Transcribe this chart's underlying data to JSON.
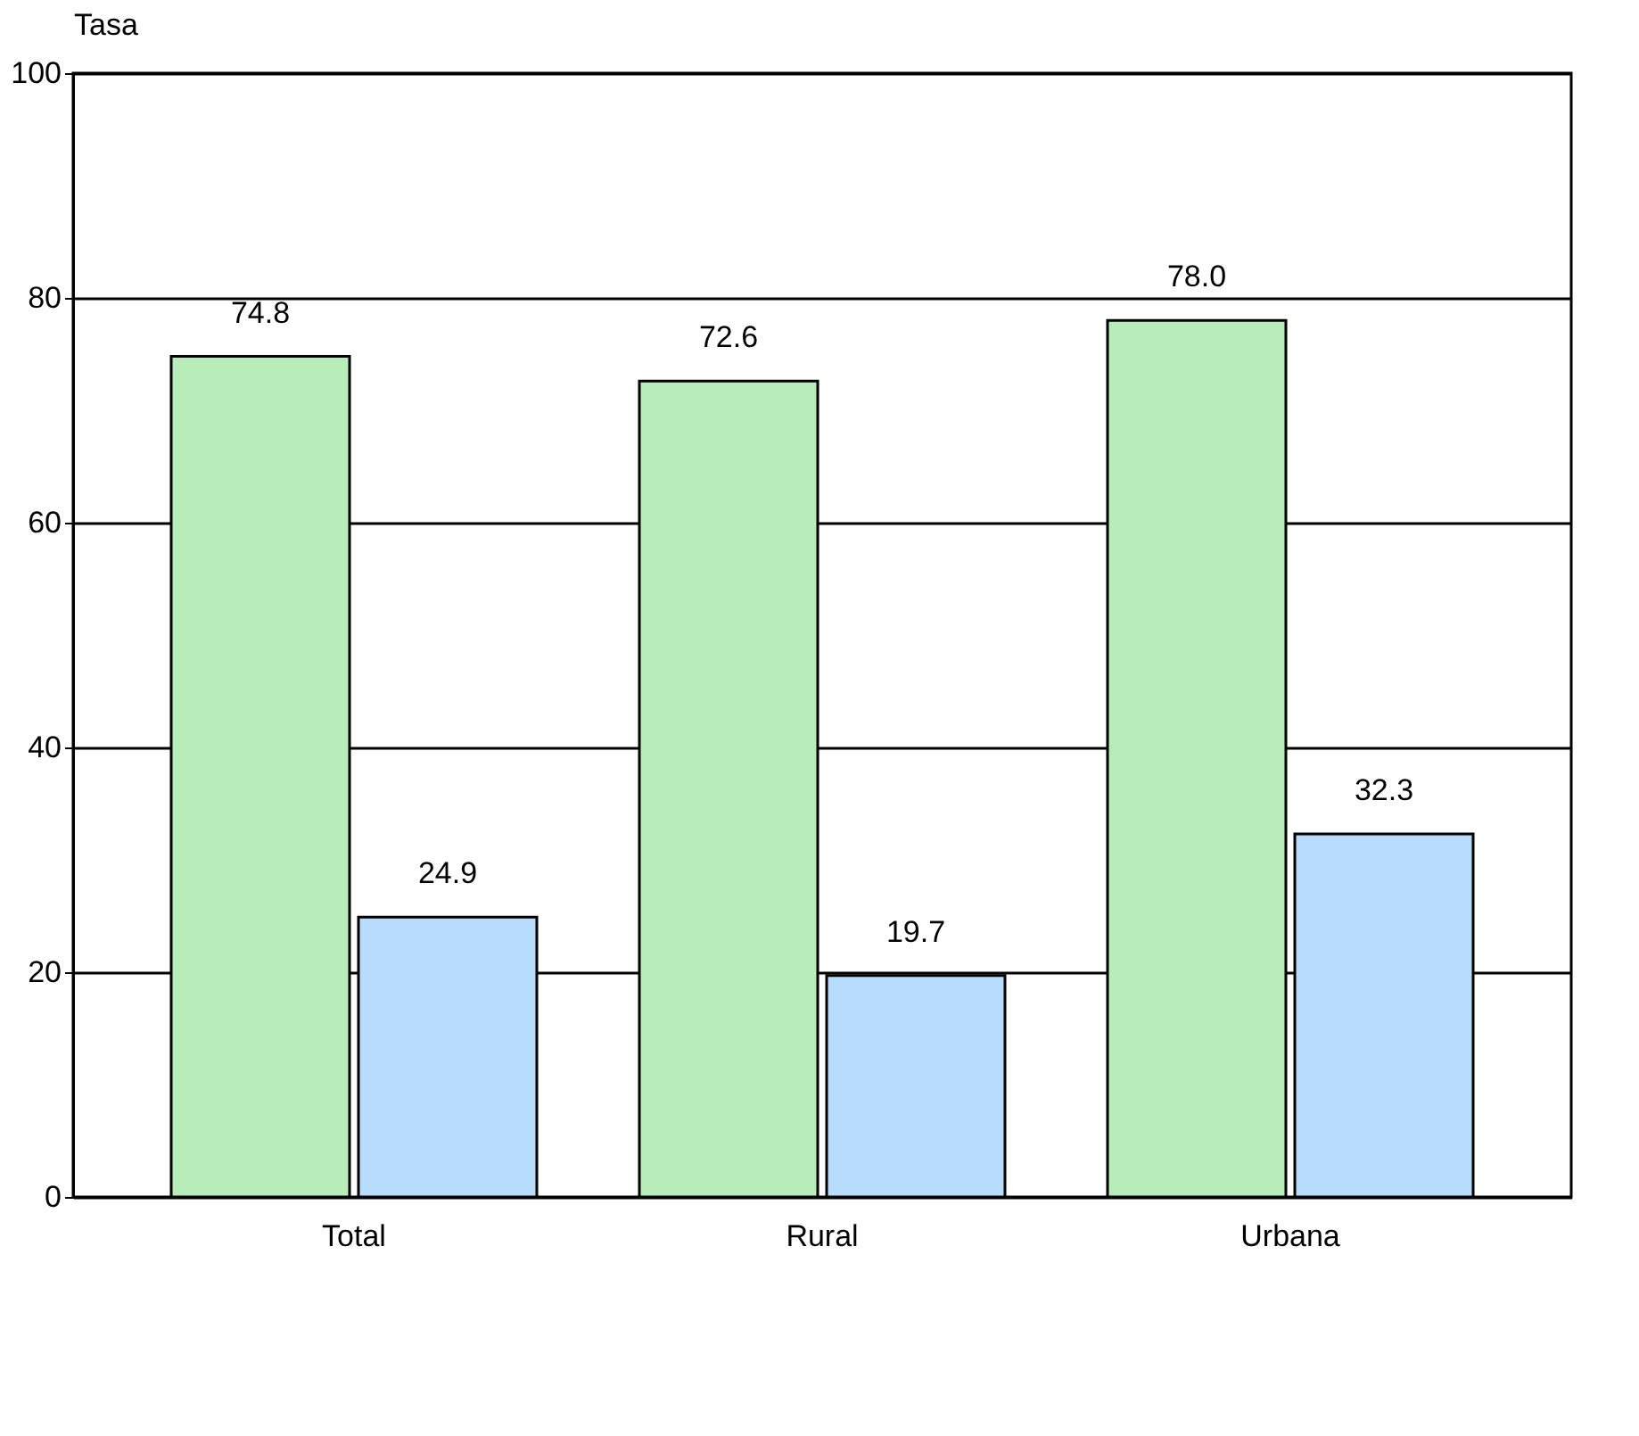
{
  "chart_data": {
    "type": "bar",
    "ylabel": "Tasa",
    "categories": [
      "Total",
      "Rural",
      "Urbana"
    ],
    "series": [
      {
        "color": "#b8ecb8",
        "values": [
          74.8,
          72.6,
          78.0
        ],
        "value_labels": [
          "74.8",
          "72.6",
          "78.0"
        ]
      },
      {
        "color": "#b8dcfc",
        "values": [
          24.9,
          19.7,
          32.3
        ],
        "value_labels": [
          "24.9",
          "19.7",
          "32.3"
        ]
      }
    ],
    "ylim": [
      0,
      100
    ],
    "yticks": [
      0,
      20,
      40,
      60,
      80,
      100
    ],
    "grid": "y",
    "legend": false
  }
}
